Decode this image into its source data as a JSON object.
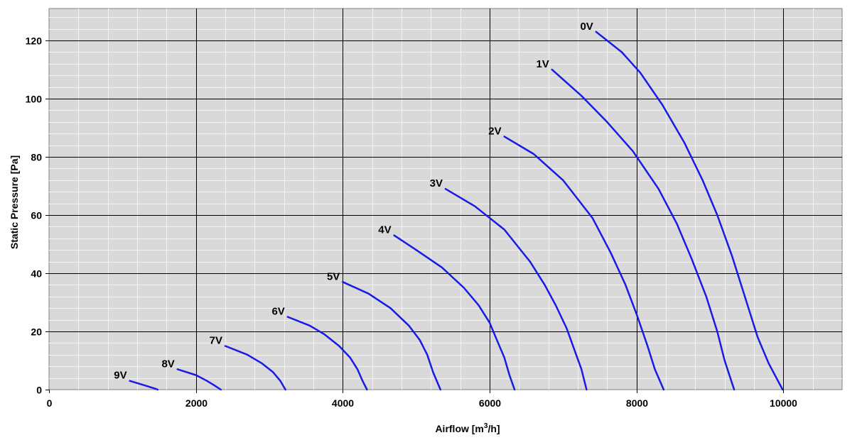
{
  "chart_data": {
    "type": "line",
    "title": "",
    "xlabel": "Airflow [m³/h]",
    "xlabel_main": "Airflow [m",
    "xlabel_sup": "3",
    "xlabel_tail": "/h]",
    "ylabel": "Static Pressure  [Pa]",
    "xlim": [
      0,
      10800
    ],
    "ylim": [
      0,
      131
    ],
    "x_major_ticks": [
      0,
      2000,
      4000,
      6000,
      8000,
      10000
    ],
    "y_major_ticks": [
      0,
      20,
      40,
      60,
      80,
      100,
      120
    ],
    "x_minor_step": 400,
    "y_minor_step": 4,
    "grid": true,
    "plot_background": "#d9d9d9",
    "minor_grid_color": "#f2f2f2",
    "major_grid_color": "#000000",
    "line_color": "#1a1ae6",
    "series": [
      {
        "name": "0V",
        "x": [
          7450,
          7800,
          8050,
          8350,
          8650,
          8900,
          9100,
          9300,
          9500,
          9650,
          9800,
          9990
        ],
        "y": [
          123,
          116,
          109,
          98,
          85,
          72,
          60,
          46,
          30,
          18,
          9,
          0
        ]
      },
      {
        "name": "1V",
        "x": [
          6850,
          7250,
          7600,
          7950,
          8300,
          8550,
          8750,
          8950,
          9100,
          9200,
          9330
        ],
        "y": [
          110,
          101,
          92,
          82,
          69,
          57,
          45,
          32,
          20,
          10,
          0
        ]
      },
      {
        "name": "2V",
        "x": [
          6200,
          6600,
          7000,
          7400,
          7650,
          7850,
          8000,
          8150,
          8250,
          8370
        ],
        "y": [
          87,
          81,
          72,
          59,
          47,
          36,
          26,
          15,
          7,
          0
        ]
      },
      {
        "name": "3V",
        "x": [
          5400,
          5800,
          6200,
          6550,
          6750,
          6900,
          7050,
          7150,
          7250,
          7320
        ],
        "y": [
          69,
          63,
          55,
          44,
          36,
          29,
          21,
          14,
          7,
          0
        ]
      },
      {
        "name": "4V",
        "x": [
          4700,
          5000,
          5350,
          5650,
          5850,
          6000,
          6100,
          6200,
          6270,
          6340
        ],
        "y": [
          53,
          48,
          42,
          35,
          29,
          23,
          17,
          11,
          5,
          0
        ]
      },
      {
        "name": "5V",
        "x": [
          4000,
          4350,
          4650,
          4900,
          5050,
          5150,
          5230,
          5330
        ],
        "y": [
          37,
          33,
          28,
          22,
          17,
          12,
          6,
          0
        ]
      },
      {
        "name": "6V",
        "x": [
          3250,
          3550,
          3750,
          3950,
          4100,
          4200,
          4270,
          4330
        ],
        "y": [
          25,
          22,
          19,
          15,
          11,
          7,
          3,
          0
        ]
      },
      {
        "name": "7V",
        "x": [
          2400,
          2700,
          2900,
          3050,
          3150,
          3220
        ],
        "y": [
          15,
          12,
          9,
          6,
          3,
          0
        ]
      },
      {
        "name": "8V",
        "x": [
          1750,
          2000,
          2150,
          2250,
          2340
        ],
        "y": [
          7,
          5,
          3,
          1.5,
          0
        ]
      },
      {
        "name": "9V",
        "x": [
          1100,
          1300,
          1450,
          1480
        ],
        "y": [
          3,
          1.5,
          0.3,
          0
        ]
      }
    ]
  }
}
